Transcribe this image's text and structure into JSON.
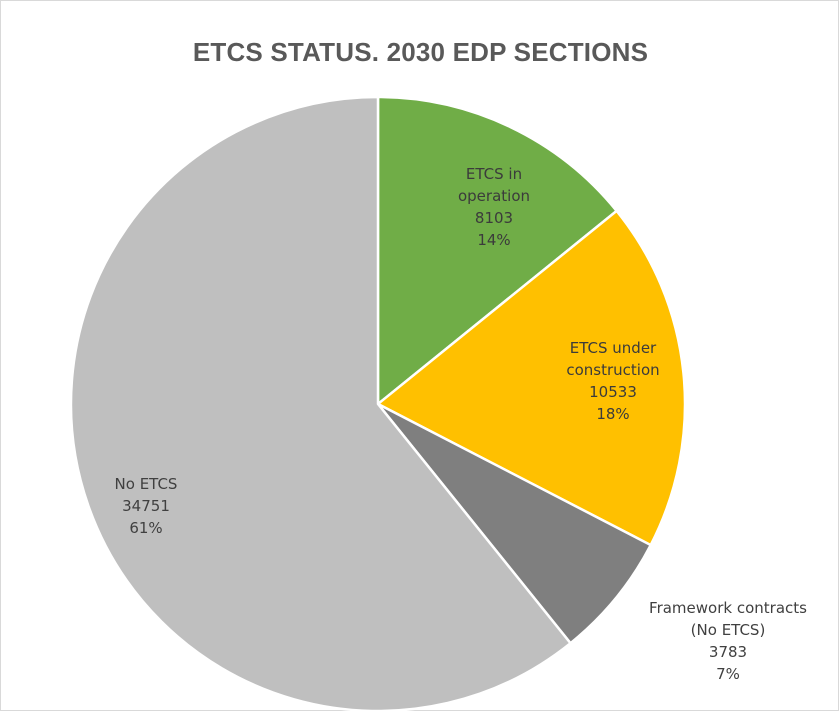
{
  "chart_data": {
    "type": "pie",
    "title": "ETCS STATUS. 2030 EDP SECTIONS",
    "slices": [
      {
        "label_lines": [
          "ETCS in",
          "operation"
        ],
        "value": 8103,
        "value_text": "8103",
        "percent_text": "14%",
        "color": "#70ad47",
        "text_color": "#3b3b3b"
      },
      {
        "label_lines": [
          "ETCS under",
          "construction"
        ],
        "value": 10533,
        "value_text": "10533",
        "percent_text": "18%",
        "color": "#ffc000",
        "text_color": "#3b3b3b"
      },
      {
        "label_lines": [
          "Framework contracts",
          "(No ETCS)"
        ],
        "value": 3783,
        "value_text": "3783",
        "percent_text": "7%",
        "color": "#7f7f7f",
        "text_color": "#404040"
      },
      {
        "label_lines": [
          "No ETCS"
        ],
        "value": 34751,
        "value_text": "34751",
        "percent_text": "61%",
        "color": "#bfbfbf",
        "text_color": "#404040"
      }
    ],
    "start_angle": "12 o'clock",
    "direction": "clockwise",
    "legend": "none"
  }
}
